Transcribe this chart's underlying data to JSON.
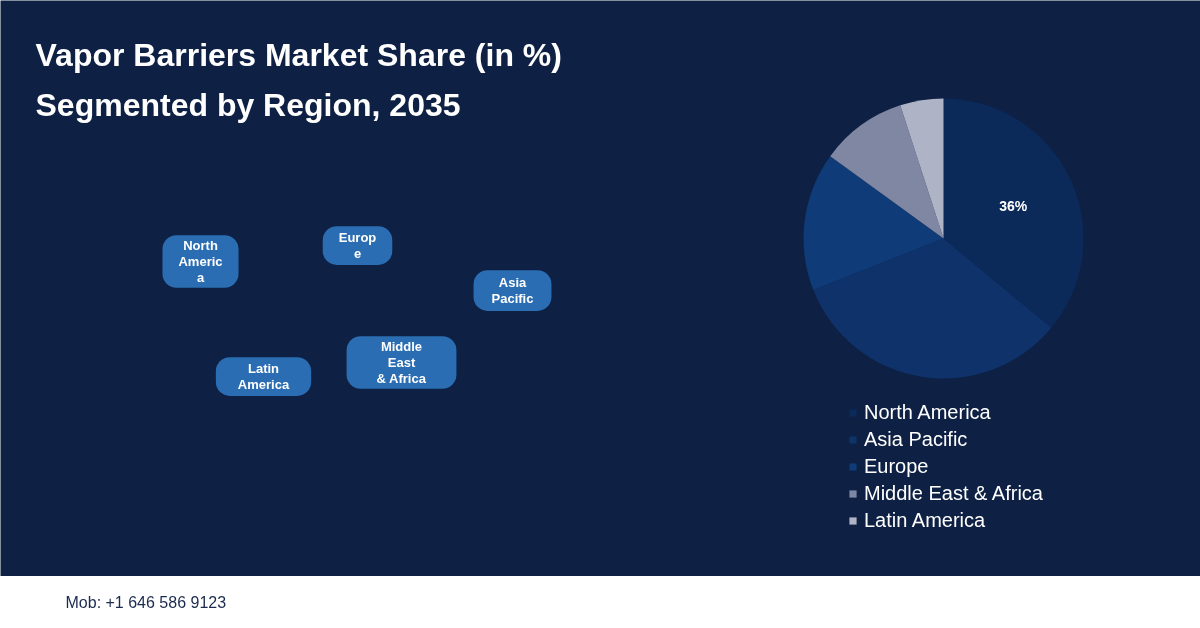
{
  "chart_data": {
    "type": "pie",
    "title": "Vapor Barriers Market Share (in %) Segmented by Region, 2035",
    "categories": [
      "North America",
      "Asia Pacific",
      "Europe",
      "Middle East & Africa",
      "Latin America"
    ],
    "values": [
      36,
      33,
      16,
      10,
      5
    ],
    "colors": [
      "#0b2a5a",
      "#0e3269",
      "#0f3b78",
      "#7f87a3",
      "#aeb4c5"
    ],
    "value_labels": [
      "36%",
      null,
      null,
      null,
      null
    ],
    "legend": "bottom",
    "annotations": [
      "North\nAmeric\na",
      "Europ\ne",
      "Asia\nPacific",
      "Latin\nAmerica",
      "Middle\nEast\n& Africa",
      "Mob: +1 646 586 9123"
    ]
  }
}
